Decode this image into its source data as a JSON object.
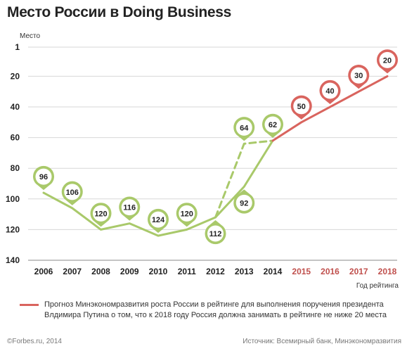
{
  "title": "Место  России в Doing Business",
  "legend": {
    "text": "Прогноз Минэкономразвития роста России в рейтинге для выполнения поручения президента Влдимира Путина о том, что к 2018 году Россия должна занимать в рейтинге не ниже 20 места",
    "color": "#d9645e"
  },
  "footer": {
    "copyright": "©Forbes.ru, 2014",
    "source": "Источник: Всемирный банк, Минэкономразвития"
  },
  "chart_data": {
    "type": "line",
    "ylabel": "Место",
    "xlabel": "Год рейтинга",
    "y_reversed": true,
    "ylim": [
      1,
      140
    ],
    "y_ticks": [
      1,
      20,
      40,
      60,
      80,
      100,
      120,
      140
    ],
    "categories": [
      "2006",
      "2007",
      "2008",
      "2009",
      "2010",
      "2011",
      "2012",
      "2013",
      "2014",
      "2015",
      "2016",
      "2017",
      "2018"
    ],
    "forecast_categories": [
      "2015",
      "2016",
      "2017",
      "2018"
    ],
    "colors": {
      "actual": "#a9c96a",
      "forecast": "#d9645e",
      "forecast_tick": "#c0504d"
    },
    "grid": true,
    "series": [
      {
        "style": "solid",
        "color": "#a9c96a",
        "points": [
          [
            2006,
            96
          ],
          [
            2007,
            106
          ],
          [
            2008,
            120
          ],
          [
            2009,
            116
          ],
          [
            2010,
            124
          ],
          [
            2011,
            120
          ],
          [
            2012,
            112
          ],
          [
            2013,
            92
          ],
          [
            2014,
            62
          ]
        ],
        "labels": [
          {
            "x": 2006,
            "value": "96",
            "pos": "above"
          },
          {
            "x": 2007,
            "value": "106",
            "pos": "above"
          },
          {
            "x": 2008,
            "value": "120",
            "pos": "above"
          },
          {
            "x": 2009,
            "value": "116",
            "pos": "above"
          },
          {
            "x": 2010,
            "value": "124",
            "pos": "above"
          },
          {
            "x": 2011,
            "value": "120",
            "pos": "above"
          },
          {
            "x": 2012,
            "value": "112",
            "pos": "below"
          },
          {
            "x": 2013,
            "value": "92",
            "pos": "below"
          },
          {
            "x": 2014,
            "value": "62",
            "pos": "above"
          }
        ]
      },
      {
        "style": "dashed",
        "color": "#a9c96a",
        "points": [
          [
            2012,
            112
          ],
          [
            2013,
            64
          ],
          [
            2014,
            62
          ]
        ],
        "labels": [
          {
            "x": 2013,
            "value": "64",
            "pos": "above"
          }
        ]
      },
      {
        "style": "solid",
        "color": "#d9645e",
        "points": [
          [
            2014,
            62
          ],
          [
            2015,
            50
          ],
          [
            2016,
            40
          ],
          [
            2017,
            30
          ],
          [
            2018,
            20
          ]
        ],
        "labels": [
          {
            "x": 2015,
            "value": "50",
            "pos": "above"
          },
          {
            "x": 2016,
            "value": "40",
            "pos": "above"
          },
          {
            "x": 2017,
            "value": "30",
            "pos": "above"
          },
          {
            "x": 2018,
            "value": "20",
            "pos": "above"
          }
        ]
      }
    ]
  }
}
